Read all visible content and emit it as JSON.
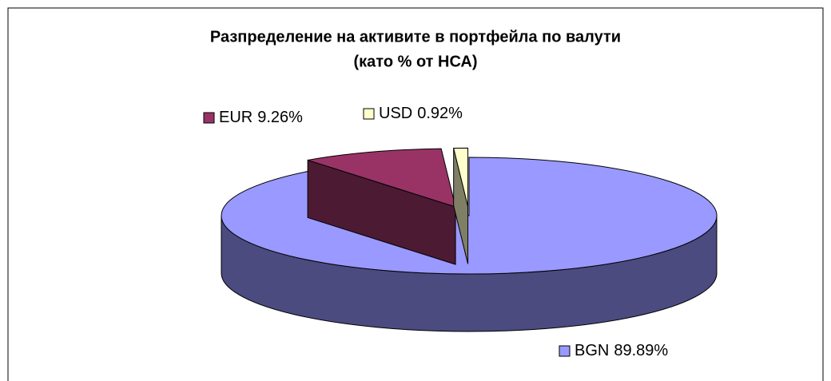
{
  "chart_data": {
    "type": "pie3d",
    "title": "Разпределение на активите в портфейла по валути",
    "subtitle": "(като % от НСА)",
    "categories": [
      "BGN",
      "EUR",
      "USD"
    ],
    "values": [
      89.89,
      9.26,
      0.92
    ],
    "value_labels": [
      "89.89%",
      "9.26%",
      "0.92%"
    ],
    "colors": [
      "#9999ff",
      "#993366",
      "#ffffcc"
    ],
    "side_colors": [
      "#4b4b80",
      "#4c1a33",
      "#7f7f66"
    ]
  }
}
